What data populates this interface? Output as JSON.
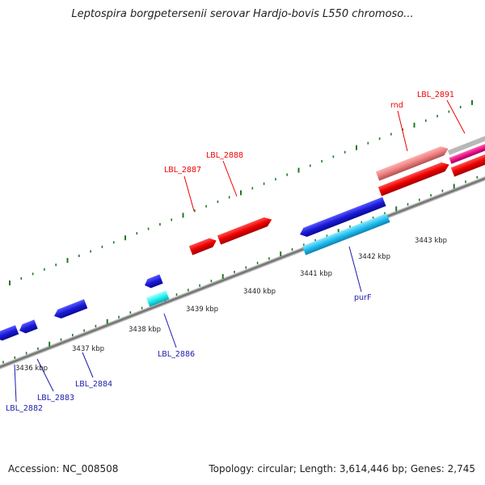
{
  "header": {
    "title": "Leptospira borgpetersenii serovar Hardjo-bovis L550 chromoso..."
  },
  "footer": {
    "accession": "Accession: NC_008508",
    "summary": "Topology: circular; Length: 3,614,446 bp; Genes: 2,745"
  },
  "gene_labels": {
    "rnd": "rnd",
    "lbl_2891": "LBL_2891",
    "lbl_2888": "LBL_2888",
    "lbl_2887": "LBL_2887",
    "purf": "purF",
    "lbl_2886": "LBL_2886",
    "lbl_2884": "LBL_2884",
    "lbl_2883": "LBL_2883",
    "lbl_2882": "LBL_2882"
  },
  "scale_labels": {
    "k3436": "3436 kbp",
    "k3437": "3437 kbp",
    "k3438": "3438 kbp",
    "k3439": "3439 kbp",
    "k3440": "3440 kbp",
    "k3441": "3441 kbp",
    "k3442": "3442 kbp",
    "k3443": "3443 kbp"
  },
  "colors": {
    "forward_gene": "#ee0000",
    "forward_gene_light": "#ee8080",
    "forward_gene_pink": "#ee1188",
    "reverse_gene": "#1a1ad8",
    "reverse_gene_cyan": "#20c0f0",
    "reverse_gene_aqua": "#20f0f0",
    "backbone": "#808080",
    "ticks": "#1e7a1e",
    "label_red": "#ee0000",
    "label_blue": "#1a1aaa"
  }
}
